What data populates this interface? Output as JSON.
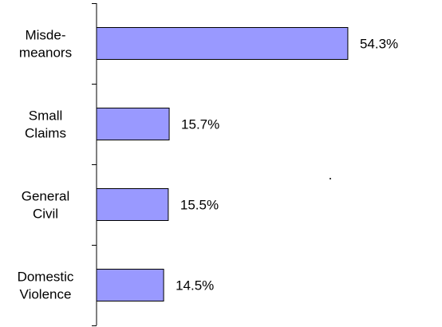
{
  "chart_data": {
    "type": "bar",
    "orientation": "horizontal",
    "categories": [
      [
        "Misde-",
        "meanors"
      ],
      [
        "Small",
        "Claims"
      ],
      [
        "General",
        "Civil"
      ],
      [
        "Domestic",
        "Violence"
      ]
    ],
    "values": [
      54.3,
      15.7,
      15.5,
      14.5
    ],
    "data_labels": [
      "54.3%",
      "15.7%",
      "15.5%",
      "14.5%"
    ],
    "xlim": [
      0,
      100
    ],
    "grid": false,
    "legend": "none",
    "colors": {
      "bar_fill": "#9999FF",
      "bar_stroke": "#000000",
      "axis": "#000000",
      "text": "#000000"
    }
  }
}
